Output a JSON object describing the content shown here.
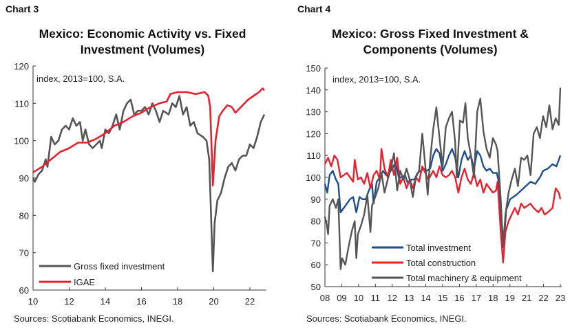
{
  "chart_data": [
    {
      "type": "line",
      "label": "Chart 3",
      "title": [
        "Mexico: Economic Activity vs. Fixed",
        "Investment (Volumes)"
      ],
      "note": "index, 2013=100, S.A.",
      "source": "Sources: Scotiabank Economics, INEGI.",
      "ylim": [
        60,
        120
      ],
      "yticks": [
        "60",
        "70",
        "80",
        "90",
        "100",
        "110",
        "120"
      ],
      "xlim": [
        10,
        22.9
      ],
      "xticks": [
        "10",
        "12",
        "14",
        "16",
        "18",
        "20",
        "22"
      ],
      "legend_position": "bottom-left",
      "colors": {
        "Gross fixed investment": "#555555",
        "IGAE": "#e8202e"
      },
      "series": [
        {
          "name": "Gross fixed investment",
          "x": [
            10.0,
            10.1,
            10.3,
            10.5,
            10.7,
            10.8,
            11.0,
            11.2,
            11.4,
            11.6,
            11.8,
            12.0,
            12.2,
            12.4,
            12.6,
            12.75,
            12.9,
            13.1,
            13.3,
            13.5,
            13.7,
            13.8,
            14.0,
            14.2,
            14.4,
            14.6,
            14.8,
            15.0,
            15.2,
            15.4,
            15.6,
            15.8,
            16.0,
            16.2,
            16.4,
            16.6,
            16.8,
            17.0,
            17.2,
            17.5,
            17.7,
            17.9,
            18.1,
            18.3,
            18.5,
            18.7,
            18.9,
            19.1,
            19.4,
            19.6,
            19.75,
            19.85,
            19.95,
            20.05,
            20.2,
            20.4,
            20.6,
            20.8,
            21.0,
            21.2,
            21.4,
            21.6,
            21.8,
            22.0,
            22.2,
            22.4,
            22.6,
            22.8
          ],
          "y": [
            90,
            89,
            91,
            92,
            95,
            93,
            101,
            99,
            100,
            103,
            104,
            103,
            106,
            104,
            105,
            100,
            103,
            99,
            98,
            99,
            100,
            98,
            103,
            102,
            104,
            107,
            103,
            108,
            110,
            111,
            107,
            108,
            108,
            109,
            107,
            110,
            108,
            105,
            108,
            107,
            110,
            109,
            112,
            107,
            109,
            104,
            105,
            102,
            101,
            100,
            95,
            80,
            65,
            78,
            84,
            86,
            90,
            93,
            94,
            92,
            95,
            96,
            96,
            99,
            98,
            101,
            105,
            107
          ]
        },
        {
          "name": "IGAE",
          "x": [
            10.0,
            10.5,
            11.0,
            11.5,
            12.0,
            12.5,
            13.0,
            13.5,
            14.0,
            14.5,
            15.0,
            15.5,
            16.0,
            16.5,
            17.0,
            17.4,
            17.6,
            18.0,
            18.5,
            19.0,
            19.5,
            19.7,
            19.8,
            19.95,
            20.1,
            20.3,
            20.5,
            20.75,
            21.0,
            21.2,
            21.5,
            21.9,
            22.2,
            22.5,
            22.7,
            22.8
          ],
          "y": [
            91.5,
            93,
            95,
            97,
            98,
            99.5,
            99.5,
            100.5,
            102,
            104,
            105,
            106.5,
            107.5,
            109,
            110,
            110.5,
            112.5,
            113,
            113,
            112.5,
            113,
            112,
            109,
            88,
            100,
            106.5,
            108,
            109.5,
            109,
            107.5,
            109,
            111,
            112,
            113,
            114,
            113.5
          ]
        }
      ]
    },
    {
      "type": "line",
      "label": "Chart 4",
      "title": [
        "Mexico: Gross Fixed Investment &",
        "Components (Volumes)"
      ],
      "note": "index, 2013=100, S.A.",
      "source": "Sources: Scotiabank Economics, INEGI.",
      "ylim": [
        50,
        150
      ],
      "yticks": [
        "50",
        "60",
        "70",
        "80",
        "90",
        "100",
        "110",
        "120",
        "130",
        "140",
        "150"
      ],
      "xlim": [
        8,
        23
      ],
      "xticks": [
        "08",
        "09",
        "10",
        "11",
        "12",
        "13",
        "14",
        "15",
        "16",
        "17",
        "18",
        "19",
        "21",
        "22",
        "23"
      ],
      "legend_position": "bottom-center",
      "colors": {
        "Total investment": "#1f4e8c",
        "Total construction": "#e8202e",
        "Total machinery & equipment": "#555555"
      },
      "series": [
        {
          "name": "Total investment",
          "x": [
            8.0,
            8.15,
            8.3,
            8.5,
            8.7,
            8.85,
            9.0,
            9.2,
            9.4,
            9.6,
            9.8,
            10.0,
            10.2,
            10.4,
            10.6,
            10.8,
            11.0,
            11.1,
            11.3,
            11.5,
            11.7,
            11.9,
            12.1,
            12.3,
            12.5,
            12.7,
            12.9,
            13.1,
            13.3,
            13.5,
            13.7,
            13.9,
            14.1,
            14.3,
            14.5,
            14.7,
            14.9,
            15.1,
            15.3,
            15.5,
            15.7,
            15.9,
            16.1,
            16.3,
            16.5,
            16.7,
            16.9,
            17.1,
            17.3,
            17.5,
            17.7,
            17.9,
            18.1,
            18.3,
            18.5,
            18.7,
            18.95,
            19.1,
            19.25,
            19.4,
            19.55,
            19.8,
            20.0,
            20.2,
            20.5,
            20.8,
            21.1,
            21.4,
            21.7,
            21.9,
            22.2,
            22.5,
            22.75,
            23.0
          ],
          "y": [
            97,
            93,
            101,
            103,
            99,
            97,
            84,
            86,
            88,
            90,
            91,
            84,
            91,
            90,
            90,
            94,
            97,
            88,
            98,
            100,
            103,
            101,
            102,
            104,
            107,
            100,
            100,
            101,
            97,
            99,
            99,
            102,
            103,
            104,
            103,
            104,
            110,
            113,
            111,
            103,
            106,
            110,
            113,
            109,
            100,
            108,
            112,
            108,
            110,
            104,
            112,
            110,
            105,
            103,
            104,
            102,
            102,
            97,
            80,
            70,
            85,
            90,
            91,
            92,
            94,
            96,
            98,
            97,
            100,
            103,
            104,
            106,
            105,
            110
          ]
        },
        {
          "name": "Total construction",
          "x": [
            8.0,
            8.2,
            8.4,
            8.6,
            8.8,
            9.0,
            9.2,
            9.4,
            9.6,
            9.8,
            9.9,
            10.1,
            10.3,
            10.5,
            10.7,
            10.9,
            11.1,
            11.3,
            11.5,
            11.6,
            11.8,
            12.0,
            12.2,
            12.4,
            12.6,
            12.8,
            13.0,
            13.2,
            13.4,
            13.6,
            13.8,
            14.0,
            14.2,
            14.4,
            14.6,
            14.9,
            15.1,
            15.3,
            15.5,
            15.7,
            15.9,
            16.1,
            16.3,
            16.5,
            16.7,
            16.9,
            17.1,
            17.3,
            17.5,
            17.7,
            17.9,
            18.1,
            18.3,
            18.5,
            18.7,
            18.9,
            19.0,
            19.2,
            19.35,
            19.5,
            19.7,
            19.9,
            20.1,
            20.3,
            20.5,
            20.7,
            20.9,
            21.1,
            21.3,
            21.6,
            21.8,
            22.0,
            22.2,
            22.5,
            22.7,
            22.9,
            23.0
          ],
          "y": [
            106,
            109,
            105,
            110,
            108,
            100,
            101,
            102,
            100,
            98,
            108,
            99,
            100,
            97,
            102,
            95,
            101,
            103,
            99,
            113,
            104,
            100,
            108,
            101,
            109,
            97,
            100,
            95,
            99,
            95,
            100,
            98,
            105,
            102,
            99,
            103,
            100,
            105,
            101,
            100,
            101,
            103,
            100,
            93,
            100,
            104,
            99,
            97,
            102,
            96,
            99,
            93,
            97,
            95,
            93,
            94,
            98,
            75,
            61,
            75,
            80,
            83,
            86,
            83,
            88,
            86,
            87,
            88,
            86,
            84,
            86,
            83,
            84,
            86,
            95,
            93,
            90
          ]
        },
        {
          "name": "Total machinery & equipment",
          "x": [
            8.0,
            8.1,
            8.2,
            8.3,
            8.5,
            8.7,
            8.85,
            9.0,
            9.1,
            9.3,
            9.5,
            9.7,
            9.9,
            10.0,
            10.1,
            10.3,
            10.5,
            10.7,
            10.9,
            11.0,
            11.2,
            11.4,
            11.6,
            11.8,
            12.0,
            12.2,
            12.4,
            12.6,
            12.8,
            13.0,
            13.2,
            13.4,
            13.6,
            13.8,
            14.0,
            14.2,
            14.4,
            14.55,
            14.7,
            14.9,
            15.1,
            15.3,
            15.5,
            15.7,
            15.9,
            16.1,
            16.3,
            16.4,
            16.6,
            16.8,
            16.95,
            17.1,
            17.3,
            17.5,
            17.7,
            17.9,
            18.1,
            18.3,
            18.5,
            18.7,
            18.9,
            19.0,
            19.2,
            19.35,
            19.5,
            19.7,
            19.9,
            20.1,
            20.3,
            20.5,
            20.7,
            20.9,
            21.1,
            21.3,
            21.5,
            21.7,
            21.9,
            22.1,
            22.3,
            22.5,
            22.7,
            22.9,
            23.0
          ],
          "y": [
            82,
            79,
            74,
            87,
            90,
            86,
            90,
            58,
            63,
            60,
            68,
            75,
            80,
            63,
            74,
            78,
            83,
            92,
            75,
            87,
            91,
            95,
            102,
            93,
            99,
            104,
            111,
            94,
            103,
            99,
            104,
            99,
            91,
            100,
            103,
            120,
            105,
            92,
            108,
            122,
            132,
            118,
            105,
            123,
            127,
            130,
            116,
            100,
            126,
            125,
            134,
            118,
            110,
            100,
            130,
            136,
            121,
            113,
            109,
            118,
            115,
            112,
            90,
            68,
            83,
            93,
            99,
            104,
            96,
            109,
            108,
            110,
            101,
            120,
            123,
            118,
            128,
            123,
            133,
            122,
            127,
            124,
            141
          ]
        }
      ]
    }
  ]
}
